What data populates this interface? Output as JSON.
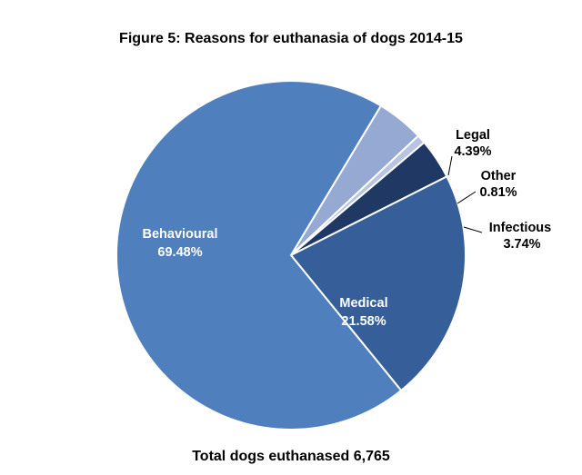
{
  "title": "Figure 5:  Reasons for euthanasia of dogs 2014-15",
  "footer": "Total dogs euthanased 6,765",
  "chart_data": {
    "type": "pie",
    "title": "Figure 5:  Reasons for euthanasia of dogs 2014-15",
    "slices": [
      {
        "name": "Legal",
        "value": 4.39,
        "label": "4.39%",
        "color": "#95a9d3"
      },
      {
        "name": "Other",
        "value": 0.81,
        "label": "0.81%",
        "color": "#b7c5e2"
      },
      {
        "name": "Infectious",
        "value": 3.74,
        "label": "3.74%",
        "color": "#1f3864"
      },
      {
        "name": "Medical",
        "value": 21.58,
        "label": "21.58%",
        "color": "#365f99"
      },
      {
        "name": "Behavioural",
        "value": 69.48,
        "label": "69.48%",
        "color": "#4f7fbc"
      }
    ],
    "legend": "none",
    "annotation": "Total dogs euthanased 6,765"
  }
}
